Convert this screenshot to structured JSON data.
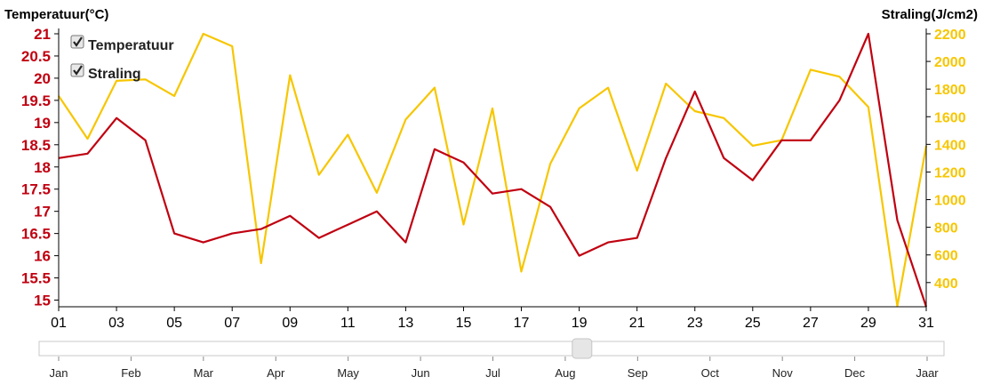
{
  "colors": {
    "temperature": "#c00010",
    "radiation": "#f7c600",
    "axis": "#000000"
  },
  "legend": [
    {
      "label": "Temperatuur",
      "checked": true,
      "icon": "checkbox-checked-icon"
    },
    {
      "label": "Straling",
      "checked": true,
      "icon": "checkbox-checked-icon"
    }
  ],
  "chart_data": {
    "type": "line",
    "x": [
      1,
      2,
      3,
      4,
      5,
      6,
      7,
      8,
      9,
      10,
      11,
      12,
      13,
      14,
      15,
      16,
      17,
      18,
      19,
      20,
      21,
      22,
      23,
      24,
      25,
      26,
      27,
      28,
      29,
      30,
      31
    ],
    "xticks": [
      "01",
      "03",
      "05",
      "07",
      "09",
      "11",
      "13",
      "15",
      "17",
      "19",
      "21",
      "23",
      "25",
      "27",
      "29",
      "31"
    ],
    "xlim": [
      1,
      31
    ],
    "y_left": {
      "label": "Temperatuur(°C)",
      "ylim": [
        14.85,
        21
      ],
      "ticks": [
        "15",
        "15.5",
        "16",
        "16.5",
        "17",
        "17.5",
        "18",
        "18.5",
        "19",
        "19.5",
        "20",
        "20.5",
        "21"
      ]
    },
    "y_right": {
      "label": "Straling(J/cm2)",
      "ylim": [
        225,
        2200
      ],
      "ticks": [
        "400",
        "600",
        "800",
        "1000",
        "1200",
        "1400",
        "1600",
        "1800",
        "2000",
        "2200"
      ]
    },
    "series": [
      {
        "name": "Temperatuur",
        "axis": "left",
        "values": [
          18.2,
          18.3,
          19.1,
          18.6,
          16.5,
          16.3,
          16.5,
          16.6,
          16.9,
          16.4,
          16.7,
          17.0,
          16.3,
          18.4,
          18.1,
          17.4,
          17.5,
          17.1,
          16.0,
          16.3,
          16.4,
          18.2,
          19.7,
          18.2,
          17.7,
          18.6,
          18.6,
          19.5,
          21.0,
          16.8,
          14.85
        ]
      },
      {
        "name": "Straling",
        "axis": "right",
        "values": [
          1750,
          1440,
          1860,
          1870,
          1750,
          2200,
          2110,
          540,
          1900,
          1180,
          1470,
          1050,
          1580,
          1810,
          820,
          1660,
          480,
          1260,
          1660,
          1810,
          1210,
          1840,
          1640,
          1590,
          1390,
          1430,
          1940,
          1890,
          1670,
          230,
          1390
        ]
      }
    ],
    "grid": false
  },
  "slider": {
    "value_fraction": 0.6,
    "months": [
      "Jan",
      "Feb",
      "Mar",
      "Apr",
      "May",
      "Jun",
      "Jul",
      "Aug",
      "Sep",
      "Oct",
      "Nov",
      "Dec",
      "Jaar"
    ]
  }
}
